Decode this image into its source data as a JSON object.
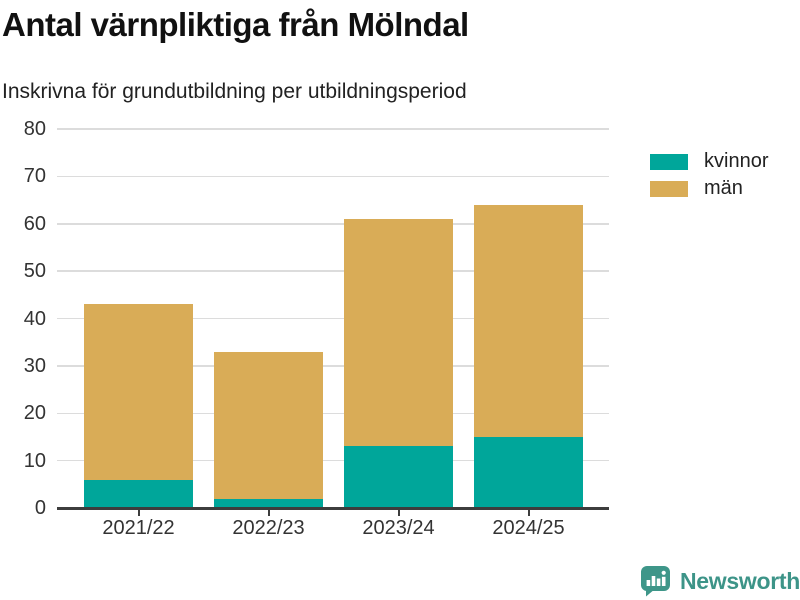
{
  "chart_data": {
    "type": "bar",
    "stacked": true,
    "title": "Antal värnpliktiga från Mölndal",
    "subtitle": "Inskrivna för grundutbildning per utbildningsperiod",
    "categories": [
      "2021/22",
      "2022/23",
      "2023/24",
      "2024/25"
    ],
    "series": [
      {
        "name": "kvinnor",
        "color": "#00a69a",
        "values": [
          6,
          2,
          13,
          15
        ]
      },
      {
        "name": "män",
        "color": "#d9ac57",
        "values": [
          37,
          31,
          48,
          49
        ]
      }
    ],
    "stack_totals": [
      43,
      33,
      61,
      64
    ],
    "xlabel": "",
    "ylabel": "",
    "ylim": [
      0,
      80
    ],
    "yticks": [
      0,
      10,
      20,
      30,
      40,
      50,
      60,
      70,
      80
    ],
    "grid": true,
    "legend_position": "right-top",
    "legend_entries": [
      "kvinnor",
      "män"
    ]
  },
  "footer": {
    "brand": "Newsworthy"
  },
  "colors": {
    "kvinnor": "#00a69a",
    "man": "#d9ac57",
    "brand": "#3d9488",
    "grid": "#dcdcdc",
    "axis": "#3d3d3d",
    "tick_text": "#333333",
    "title_text": "#111111",
    "background": "#ffffff"
  }
}
